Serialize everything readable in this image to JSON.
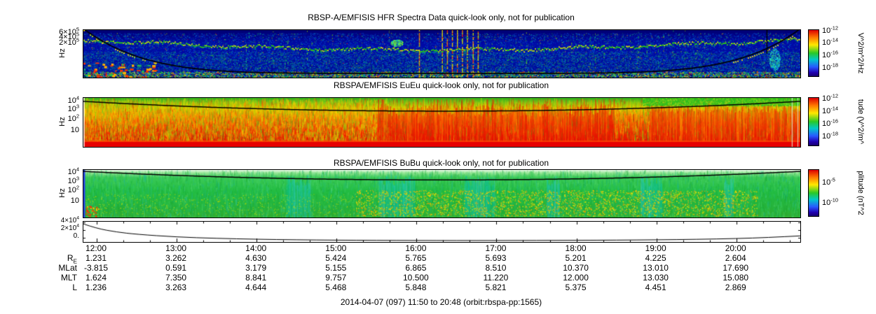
{
  "figure": {
    "caption": "2014-04-07 (097) 11:50 to 20:48 (orbit:rbspa-pp:1565)"
  },
  "panels": [
    {
      "id": "hfr",
      "title": "RBSP-A/EMFISIS  HFR Spectra Data quick-look only, not for publication",
      "ylabel": "Hz",
      "yticks": [
        "6×10^5",
        "4×10^5",
        "2×10^5"
      ],
      "colorbar_ticks": [
        "10^-12",
        "10^-14",
        "10^-16",
        "10^-18"
      ],
      "unit": "V^2/m^2/Hz"
    },
    {
      "id": "eueu",
      "title": "RBSPA/EMFISIS  EuEu quick-look only, not for publication",
      "ylabel": "Hz",
      "yticks": [
        "10^4",
        "10^3",
        "10^2",
        "10"
      ],
      "colorbar_ticks": [
        "10^-12",
        "10^-14",
        "10^-16",
        "10^-18"
      ],
      "unit": "tude (V^2/m^"
    },
    {
      "id": "bubu",
      "title": "RBSPA/EMFISIS  BuBu quick-look only, not for publication",
      "ylabel": "Hz",
      "yticks": [
        "10^4",
        "10^3",
        "10^2",
        "10"
      ],
      "colorbar_ticks": [
        "10^-5",
        "10^-10"
      ],
      "unit": "plitude (nT^2"
    },
    {
      "id": "aux",
      "yticks": [
        "4×10^4",
        "2×10^4",
        "0."
      ]
    }
  ],
  "time_axis": {
    "start_hour": 11.8333,
    "end_hour": 20.8,
    "tick_hours": [
      12,
      13,
      14,
      15,
      16,
      17,
      18,
      19,
      20
    ],
    "tick_labels": [
      "12:00",
      "13:00",
      "14:00",
      "15:00",
      "16:00",
      "17:00",
      "18:00",
      "19:00",
      "20:00"
    ]
  },
  "ephemeris": {
    "rows": [
      {
        "label": "R",
        "sub": "E",
        "values": [
          "1.231",
          "3.262",
          "4.630",
          "5.424",
          "5.765",
          "5.693",
          "5.201",
          "4.225",
          "2.604"
        ]
      },
      {
        "label": "MLat",
        "values": [
          "-3.815",
          "0.591",
          "3.179",
          "5.155",
          "6.865",
          "8.510",
          "10.370",
          "13.010",
          "17.690"
        ]
      },
      {
        "label": "MLT",
        "values": [
          "1.624",
          "7.350",
          "8.841",
          "9.757",
          "10.500",
          "11.220",
          "12.000",
          "13.030",
          "15.080"
        ]
      },
      {
        "label": "L",
        "values": [
          "1.236",
          "3.263",
          "4.644",
          "5.468",
          "5.848",
          "5.821",
          "5.375",
          "4.451",
          "2.869"
        ]
      }
    ]
  },
  "chart_data": [
    {
      "type": "heatmap",
      "panel": "HFR",
      "title": "RBSP-A/EMFISIS  HFR Spectra Data quick-look only, not for publication",
      "x_start": "11:50",
      "x_end": "20:48",
      "y_label": "Hz",
      "y_scale": "log",
      "y_tick_values": [
        600000,
        400000,
        200000
      ],
      "z_label": "V^2/m^2/Hz",
      "z_scale": "log",
      "z_ticks": [
        1e-12,
        1e-14,
        1e-16,
        1e-18
      ],
      "legend_position": "right-colorbar",
      "summary": "Deep-blue background near 10^-17 V^2/m^2/Hz; narrow green/yellow upper-hybrid emission band drifting from ~2.5x10^5 Hz at the orbit ends down to ~1.2x10^5 Hz near apogee; scattered cyan/green impulsive noise; strong broadband vertical interference bursts near 16:05-16:30; black fce-related trace runs near the panel top at both perigee ends and dips to the panel bottom near apogee; short vertical black marker near 20:20."
    },
    {
      "type": "heatmap",
      "panel": "EuEu",
      "title": "RBSPA/EMFISIS  EuEu quick-look only, not for publication",
      "x_start": "11:50",
      "x_end": "20:48",
      "y_label": "Hz",
      "y_scale": "log",
      "y_tick_values": [
        10000,
        1000,
        100,
        10
      ],
      "z_label": "V^2/m^2/Hz (amplitude)",
      "z_scale": "log",
      "z_ticks": [
        1e-12,
        1e-14,
        1e-16,
        1e-18
      ],
      "legend_position": "right-colorbar",
      "summary": "Intense broadband electric-field power: saturated red band (>10^-12) below ~10 Hz for the whole interval; red/orange power filling 10-10^3 Hz, strongest 15:30-18:30 and after 19:00; yellow-green mottled power toward higher frequencies; black fce trace arcs gently across the top of the panel."
    },
    {
      "type": "heatmap",
      "panel": "BuBu",
      "title": "RBSPA/EMFISIS  BuBu quick-look only, not for publication",
      "x_start": "11:50",
      "x_end": "20:48",
      "y_label": "Hz",
      "y_scale": "log",
      "y_tick_values": [
        10000,
        1000,
        100,
        10
      ],
      "z_label": "nT^2 (amplitude)",
      "z_scale": "log",
      "z_ticks": [
        1e-05,
        1e-10
      ],
      "legend_position": "right-colorbar",
      "summary": "Nearly uniform green magnetic spectral power from a few Hz to several kHz; weaker cyan vertical patches near 14:30, 15:30-16:00 and 18:40; stronger yellow speckle below ~100 Hz between 15:00 and 19:00; black fce trace arcs across the top; brief red/blue burst at the left (perigee) edge."
    },
    {
      "type": "line",
      "panel": "aux",
      "x_start": "11:50",
      "x_end": "20:48",
      "x_hours": [
        11.8333,
        12.0,
        12.25,
        12.5,
        13.0,
        13.5,
        14.0,
        14.5,
        15.0,
        15.5,
        16.0,
        16.5,
        17.0,
        17.5,
        18.0,
        18.5,
        19.0,
        19.5,
        20.0,
        20.4,
        20.8
      ],
      "values": [
        40000,
        30000,
        22000,
        17000,
        11000,
        8000,
        6000,
        4800,
        4000,
        3600,
        3300,
        3200,
        3200,
        3400,
        3700,
        4100,
        4800,
        5800,
        7500,
        10000,
        13500
      ],
      "y_ticks": [
        "4×10^4",
        "2×10^4",
        "0."
      ],
      "ylim": [
        0,
        45000
      ],
      "grid": false
    }
  ]
}
